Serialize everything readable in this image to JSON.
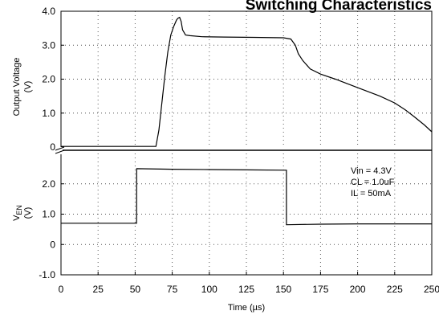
{
  "chart_data": {
    "type": "line",
    "title": "Switching Characteristics",
    "xlabel": "Time (µs)",
    "x_ticks": [
      "0",
      "25",
      "50",
      "75",
      "100",
      "125",
      "150",
      "175",
      "200",
      "225",
      "250"
    ],
    "xlim": [
      0,
      250
    ],
    "grid": true,
    "panels": [
      {
        "name": "top",
        "ylabel": "Output Voltage (V)",
        "ylim": [
          0,
          4.0
        ],
        "y_ticks": [
          "0",
          "1.0",
          "2.0",
          "3.0",
          "4.0"
        ],
        "series": [
          {
            "x": [
              0,
              20,
              40,
              60,
              64,
              66,
              68,
              70,
              72,
              74,
              76,
              78,
              79,
              80,
              81,
              82,
              84,
              87,
              95,
              110,
              130,
              150,
              155,
              158,
              160,
              163,
              168,
              175,
              185,
              200,
              215,
              225,
              232,
              238,
              245,
              250
            ],
            "y": [
              0.02,
              0.02,
              0.02,
              0.02,
              0.02,
              0.5,
              1.3,
              2.1,
              2.8,
              3.3,
              3.55,
              3.75,
              3.8,
              3.82,
              3.7,
              3.45,
              3.3,
              3.28,
              3.25,
              3.24,
              3.23,
              3.22,
              3.18,
              3.0,
              2.75,
              2.55,
              2.3,
              2.15,
              2.0,
              1.75,
              1.5,
              1.3,
              1.1,
              0.9,
              0.65,
              0.45
            ]
          }
        ]
      },
      {
        "name": "bottom",
        "ylabel": "VEN (V)",
        "ylim": [
          -1.0,
          3.0
        ],
        "y_ticks": [
          "-1.0",
          "0",
          "1.0",
          "2.0"
        ],
        "series": [
          {
            "x": [
              0,
              20,
              40,
              51,
              51.01,
              75,
              100,
              125,
              152,
              152.01,
              175,
              200,
              225,
              250
            ],
            "y": [
              0.7,
              0.7,
              0.7,
              0.7,
              2.5,
              2.48,
              2.47,
              2.46,
              2.45,
              0.65,
              0.67,
              0.68,
              0.68,
              0.68
            ]
          }
        ]
      }
    ],
    "annotations": [
      "Vin = 4.3V",
      "CL = 1.0uF",
      "IL = 50mA"
    ]
  }
}
